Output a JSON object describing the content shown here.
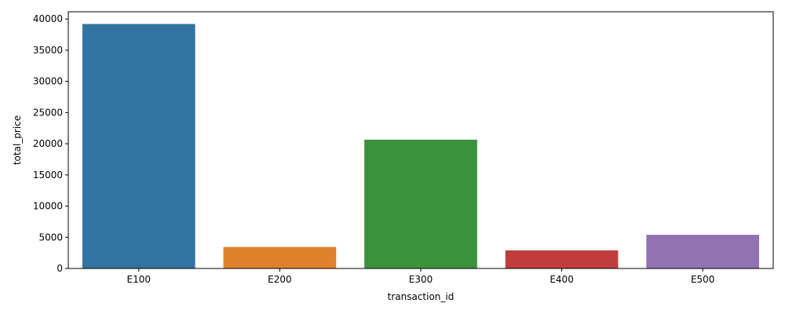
{
  "chart_data": {
    "type": "bar",
    "categories": [
      "E100",
      "E200",
      "E300",
      "E400",
      "E500"
    ],
    "values": [
      39200,
      3450,
      20650,
      2900,
      5400
    ],
    "colors": [
      "#3274a1",
      "#e1812c",
      "#3a923a",
      "#c03d3e",
      "#9372b2"
    ],
    "title": "",
    "xlabel": "transaction_id",
    "ylabel": "total_price",
    "ylim": [
      0,
      41160
    ],
    "yticks": [
      0,
      5000,
      10000,
      15000,
      20000,
      25000,
      30000,
      35000,
      40000
    ],
    "grid": false,
    "legend": "none"
  }
}
